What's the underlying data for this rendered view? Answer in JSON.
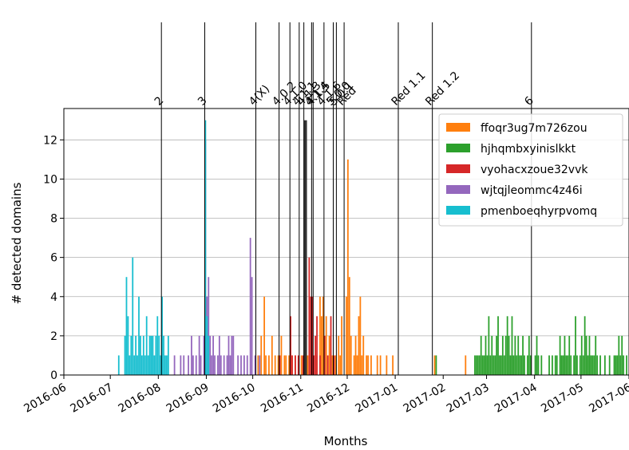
{
  "chart_data": {
    "type": "bar",
    "xlabel": "Months",
    "ylabel": "# detected domains",
    "xlim": [
      "2016-06-01",
      "2017-06-01"
    ],
    "ylim": [
      0,
      13.6
    ],
    "grid": "horizontal",
    "legend_position": "top-right",
    "x_ticks": [
      "2016-06",
      "2016-07",
      "2016-08",
      "2016-09",
      "2016-10",
      "2016-11",
      "2016-12",
      "2017-01",
      "2017-02",
      "2017-03",
      "2017-04",
      "2017-05",
      "2017-06"
    ],
    "y_ticks": [
      0,
      2,
      4,
      6,
      8,
      10,
      12
    ],
    "releases": [
      {
        "label": "2",
        "date": "2016-08-03"
      },
      {
        "label": "3",
        "date": "2016-08-31"
      },
      {
        "label": "4(X)",
        "date": "2016-10-03"
      },
      {
        "label": "4.0.2",
        "date": "2016-10-18"
      },
      {
        "label": "4.1.0",
        "date": "2016-10-25"
      },
      {
        "label": "4.1.1",
        "date": "2016-10-31"
      },
      {
        "label": "4.1.3",
        "date": "2016-11-03"
      },
      {
        "label": "4.1.4",
        "date": "2016-11-08"
      },
      {
        "label": "4.1.5",
        "date": "2016-11-09"
      },
      {
        "label": "4.1.6",
        "date": "2016-11-16"
      },
      {
        "label": "5.0.0",
        "date": "2016-11-22"
      },
      {
        "label": "5.0.1",
        "date": "2016-11-24"
      },
      {
        "label": "Red",
        "date": "2016-11-29"
      },
      {
        "label": "Red 1.1",
        "date": "2017-01-03"
      },
      {
        "label": "Red 1.2",
        "date": "2017-01-25"
      },
      {
        "label": "6",
        "date": "2017-03-30"
      }
    ],
    "series": [
      {
        "name": "ffoqr3ug7m726zou",
        "color": "#ff7f0e",
        "points": [
          [
            "2016-10-04",
            1
          ],
          [
            "2016-10-06",
            2
          ],
          [
            "2016-10-08",
            4
          ],
          [
            "2016-10-09",
            1
          ],
          [
            "2016-10-11",
            1
          ],
          [
            "2016-10-13",
            2
          ],
          [
            "2016-10-15",
            1
          ],
          [
            "2016-10-17",
            1
          ],
          [
            "2016-10-19",
            2
          ],
          [
            "2016-10-21",
            1
          ],
          [
            "2016-10-22",
            1
          ],
          [
            "2016-10-24",
            1
          ],
          [
            "2016-10-26",
            1
          ],
          [
            "2016-10-28",
            1
          ],
          [
            "2016-11-01",
            1
          ],
          [
            "2016-11-03",
            2
          ],
          [
            "2016-11-05",
            1
          ],
          [
            "2016-11-07",
            1
          ],
          [
            "2016-11-11",
            1
          ],
          [
            "2016-11-13",
            4
          ],
          [
            "2016-11-14",
            3
          ],
          [
            "2016-11-15",
            4
          ],
          [
            "2016-11-17",
            3
          ],
          [
            "2016-11-19",
            2
          ],
          [
            "2016-11-21",
            1
          ],
          [
            "2016-11-23",
            1
          ],
          [
            "2016-11-25",
            2
          ],
          [
            "2016-11-26",
            1
          ],
          [
            "2016-11-27",
            3
          ],
          [
            "2016-11-30",
            4
          ],
          [
            "2016-12-01",
            11
          ],
          [
            "2016-12-02",
            5
          ],
          [
            "2016-12-03",
            2
          ],
          [
            "2016-12-05",
            1
          ],
          [
            "2016-12-06",
            2
          ],
          [
            "2016-12-07",
            1
          ],
          [
            "2016-12-08",
            3
          ],
          [
            "2016-12-09",
            4
          ],
          [
            "2016-12-10",
            1
          ],
          [
            "2016-12-11",
            2
          ],
          [
            "2016-12-13",
            1
          ],
          [
            "2016-12-14",
            1
          ],
          [
            "2016-12-16",
            1
          ],
          [
            "2016-12-20",
            1
          ],
          [
            "2016-12-22",
            1
          ],
          [
            "2016-12-26",
            1
          ],
          [
            "2016-12-30",
            1
          ],
          [
            "2017-01-26",
            1
          ],
          [
            "2017-02-15",
            1
          ]
        ]
      },
      {
        "name": "hjhqmbxyinislkkt",
        "color": "#2ca02c",
        "points": [
          [
            "2017-01-27",
            1
          ],
          [
            "2017-02-21",
            1
          ],
          [
            "2017-02-22",
            1
          ],
          [
            "2017-02-23",
            1
          ],
          [
            "2017-02-24",
            1
          ],
          [
            "2017-02-25",
            2
          ],
          [
            "2017-02-26",
            1
          ],
          [
            "2017-02-27",
            1
          ],
          [
            "2017-02-28",
            2
          ],
          [
            "2017-03-01",
            1
          ],
          [
            "2017-03-02",
            3
          ],
          [
            "2017-03-03",
            1
          ],
          [
            "2017-03-04",
            2
          ],
          [
            "2017-03-05",
            1
          ],
          [
            "2017-03-06",
            1
          ],
          [
            "2017-03-07",
            2
          ],
          [
            "2017-03-08",
            3
          ],
          [
            "2017-03-09",
            1
          ],
          [
            "2017-03-10",
            1
          ],
          [
            "2017-03-11",
            2
          ],
          [
            "2017-03-12",
            1
          ],
          [
            "2017-03-13",
            2
          ],
          [
            "2017-03-14",
            3
          ],
          [
            "2017-03-15",
            2
          ],
          [
            "2017-03-16",
            1
          ],
          [
            "2017-03-17",
            3
          ],
          [
            "2017-03-18",
            1
          ],
          [
            "2017-03-19",
            2
          ],
          [
            "2017-03-20",
            1
          ],
          [
            "2017-03-21",
            2
          ],
          [
            "2017-03-22",
            1
          ],
          [
            "2017-03-23",
            1
          ],
          [
            "2017-03-24",
            2
          ],
          [
            "2017-03-25",
            1
          ],
          [
            "2017-03-27",
            1
          ],
          [
            "2017-03-28",
            2
          ],
          [
            "2017-03-29",
            1
          ],
          [
            "2017-04-01",
            1
          ],
          [
            "2017-04-02",
            2
          ],
          [
            "2017-04-03",
            1
          ],
          [
            "2017-04-05",
            1
          ],
          [
            "2017-04-10",
            1
          ],
          [
            "2017-04-12",
            1
          ],
          [
            "2017-04-14",
            1
          ],
          [
            "2017-04-15",
            1
          ],
          [
            "2017-04-17",
            2
          ],
          [
            "2017-04-18",
            1
          ],
          [
            "2017-04-19",
            1
          ],
          [
            "2017-04-20",
            2
          ],
          [
            "2017-04-21",
            1
          ],
          [
            "2017-04-22",
            1
          ],
          [
            "2017-04-23",
            2
          ],
          [
            "2017-04-24",
            1
          ],
          [
            "2017-04-26",
            1
          ],
          [
            "2017-04-27",
            3
          ],
          [
            "2017-04-28",
            1
          ],
          [
            "2017-04-30",
            1
          ],
          [
            "2017-05-01",
            2
          ],
          [
            "2017-05-02",
            1
          ],
          [
            "2017-05-03",
            3
          ],
          [
            "2017-05-04",
            2
          ],
          [
            "2017-05-05",
            1
          ],
          [
            "2017-05-06",
            2
          ],
          [
            "2017-05-07",
            1
          ],
          [
            "2017-05-08",
            1
          ],
          [
            "2017-05-09",
            1
          ],
          [
            "2017-05-10",
            2
          ],
          [
            "2017-05-11",
            1
          ],
          [
            "2017-05-13",
            1
          ],
          [
            "2017-05-16",
            1
          ],
          [
            "2017-05-19",
            1
          ],
          [
            "2017-05-22",
            1
          ],
          [
            "2017-05-23",
            1
          ],
          [
            "2017-05-24",
            1
          ],
          [
            "2017-05-25",
            2
          ],
          [
            "2017-05-26",
            1
          ],
          [
            "2017-05-27",
            2
          ],
          [
            "2017-05-28",
            1
          ],
          [
            "2017-05-30",
            1
          ]
        ]
      },
      {
        "name": "vyohacxzoue32vvk",
        "color": "#d62728",
        "points": [
          [
            "2016-10-18",
            1
          ],
          [
            "2016-10-25",
            3
          ],
          [
            "2016-10-26",
            1
          ],
          [
            "2016-10-28",
            1
          ],
          [
            "2016-10-30",
            1
          ],
          [
            "2016-11-02",
            1
          ],
          [
            "2016-11-03",
            2
          ],
          [
            "2016-11-06",
            6
          ],
          [
            "2016-11-07",
            4
          ],
          [
            "2016-11-08",
            4
          ],
          [
            "2016-11-09",
            1
          ],
          [
            "2016-11-10",
            2
          ],
          [
            "2016-11-11",
            3
          ],
          [
            "2016-11-13",
            1
          ],
          [
            "2016-11-16",
            2
          ],
          [
            "2016-11-18",
            1
          ],
          [
            "2016-11-20",
            3
          ],
          [
            "2016-11-22",
            1
          ]
        ]
      },
      {
        "name": "wjtqjleommc4z46i",
        "color": "#9467bd",
        "points": [
          [
            "2016-08-11",
            1
          ],
          [
            "2016-08-15",
            1
          ],
          [
            "2016-08-17",
            1
          ],
          [
            "2016-08-20",
            1
          ],
          [
            "2016-08-22",
            2
          ],
          [
            "2016-08-23",
            1
          ],
          [
            "2016-08-25",
            1
          ],
          [
            "2016-08-27",
            2
          ],
          [
            "2016-08-28",
            1
          ],
          [
            "2016-08-30",
            2
          ],
          [
            "2016-08-31",
            12
          ],
          [
            "2016-09-01",
            4
          ],
          [
            "2016-09-02",
            5
          ],
          [
            "2016-09-03",
            2
          ],
          [
            "2016-09-04",
            1
          ],
          [
            "2016-09-05",
            2
          ],
          [
            "2016-09-06",
            1
          ],
          [
            "2016-09-08",
            1
          ],
          [
            "2016-09-09",
            2
          ],
          [
            "2016-09-10",
            1
          ],
          [
            "2016-09-12",
            1
          ],
          [
            "2016-09-14",
            1
          ],
          [
            "2016-09-15",
            2
          ],
          [
            "2016-09-16",
            1
          ],
          [
            "2016-09-17",
            2
          ],
          [
            "2016-09-18",
            2
          ],
          [
            "2016-09-21",
            1
          ],
          [
            "2016-09-23",
            1
          ],
          [
            "2016-09-25",
            1
          ],
          [
            "2016-09-27",
            1
          ],
          [
            "2016-09-29",
            7
          ],
          [
            "2016-09-30",
            5
          ],
          [
            "2016-10-02",
            1
          ],
          [
            "2016-10-05",
            1
          ]
        ]
      },
      {
        "name": "pmenboeqhyrpvomq",
        "color": "#17becf",
        "points": [
          [
            "2016-07-06",
            1
          ],
          [
            "2016-07-10",
            2
          ],
          [
            "2016-07-11",
            5
          ],
          [
            "2016-07-12",
            3
          ],
          [
            "2016-07-13",
            1
          ],
          [
            "2016-07-14",
            2
          ],
          [
            "2016-07-15",
            6
          ],
          [
            "2016-07-16",
            1
          ],
          [
            "2016-07-17",
            2
          ],
          [
            "2016-07-18",
            1
          ],
          [
            "2016-07-19",
            4
          ],
          [
            "2016-07-20",
            2
          ],
          [
            "2016-07-21",
            1
          ],
          [
            "2016-07-22",
            2
          ],
          [
            "2016-07-23",
            1
          ],
          [
            "2016-07-24",
            3
          ],
          [
            "2016-07-25",
            1
          ],
          [
            "2016-07-26",
            2
          ],
          [
            "2016-07-27",
            2
          ],
          [
            "2016-07-28",
            2
          ],
          [
            "2016-07-29",
            1
          ],
          [
            "2016-07-30",
            2
          ],
          [
            "2016-07-31",
            3
          ],
          [
            "2016-08-01",
            2
          ],
          [
            "2016-08-02",
            1
          ],
          [
            "2016-08-03",
            4
          ],
          [
            "2016-08-04",
            2
          ],
          [
            "2016-08-05",
            1
          ],
          [
            "2016-08-06",
            1
          ],
          [
            "2016-08-07",
            2
          ],
          [
            "2016-08-31",
            13
          ],
          [
            "2016-09-01",
            3
          ],
          [
            "2016-09-02",
            2
          ]
        ]
      }
    ],
    "dark_bars": [
      [
        "2016-11-03",
        13
      ]
    ]
  }
}
